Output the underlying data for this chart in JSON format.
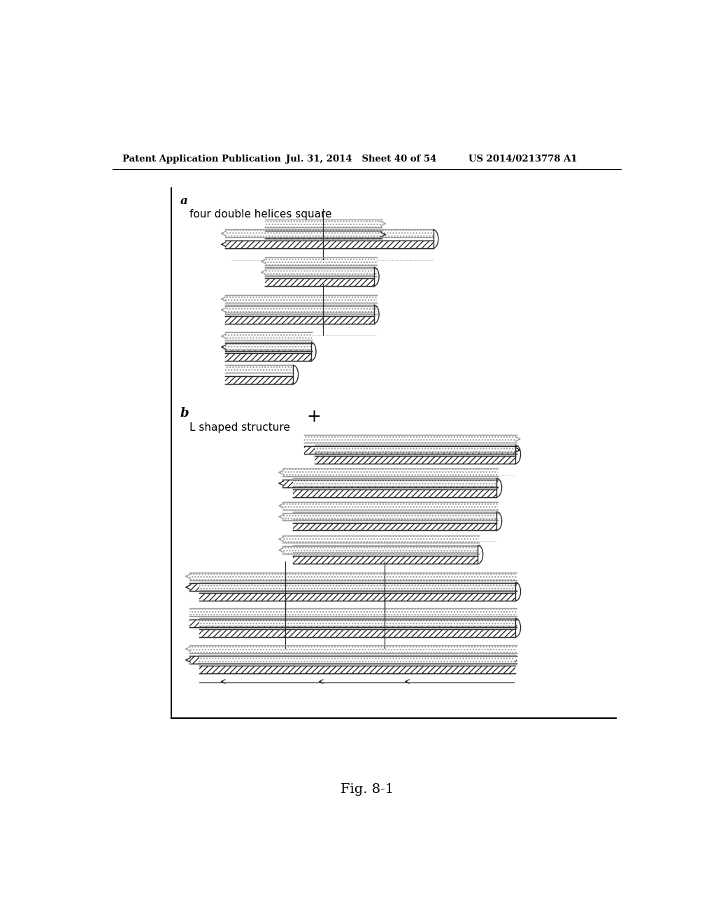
{
  "header_left": "Patent Application Publication",
  "header_mid": "Jul. 31, 2014   Sheet 40 of 54",
  "header_right": "US 2014/0213778 A1",
  "label_a": "a",
  "label_b": "b",
  "subtitle_a": "four double helices square",
  "subtitle_b": "L shaped structure",
  "plus_sign": "+",
  "figure_label": "Fig. 8-1",
  "bg_color": "#ffffff",
  "c_dark": "#222222",
  "c_mid": "#555555",
  "c_light": "#aaaaaa"
}
